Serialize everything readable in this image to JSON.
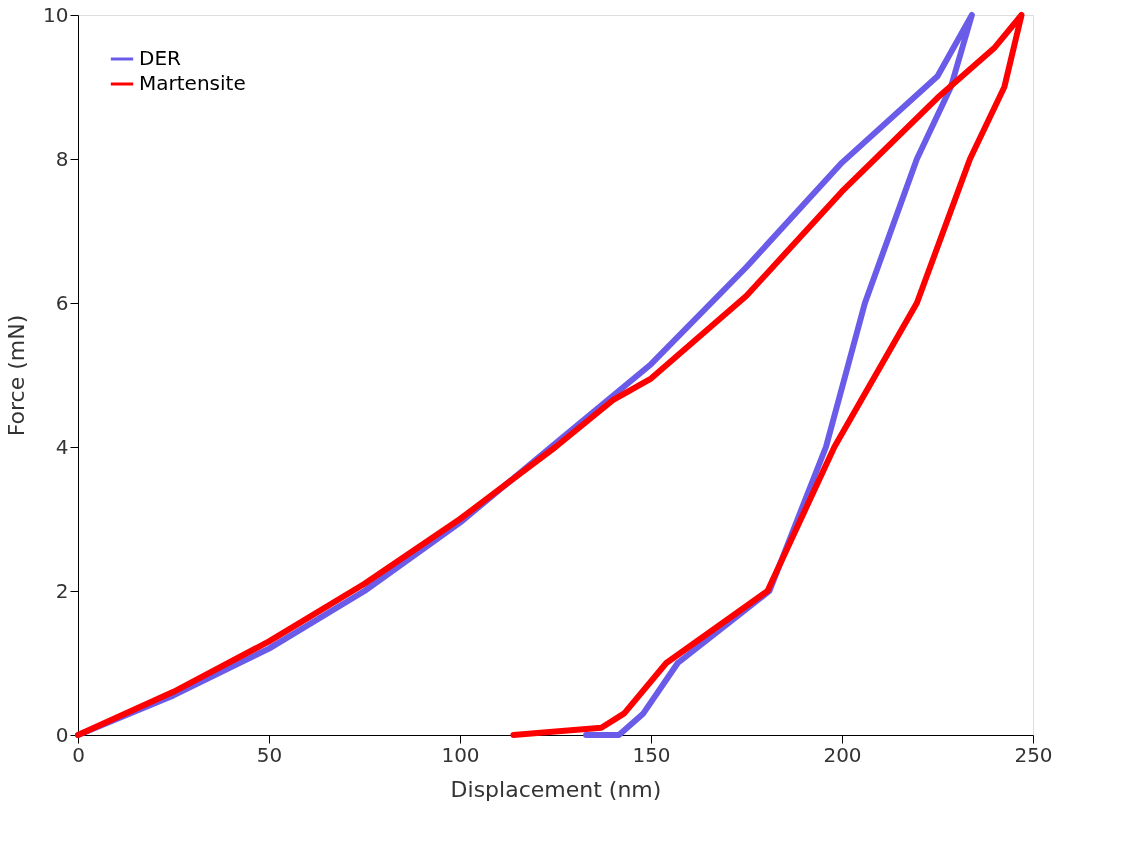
{
  "chart_data": {
    "type": "line",
    "xlabel": "Displacement (nm)",
    "ylabel": "Force (mN)",
    "xlim": [
      0,
      250
    ],
    "xticks": [
      0,
      50,
      100,
      150,
      200,
      250
    ],
    "ylim": [
      0,
      10
    ],
    "yticks": [
      0,
      2,
      4,
      6,
      8,
      10
    ],
    "grid": false,
    "legend": "top left",
    "marker": "none",
    "line_style": "solid",
    "series": [
      {
        "name": "DER",
        "color": "#6a5ce8",
        "x": [
          0,
          25,
          50,
          75,
          100,
          125,
          150,
          175,
          200,
          225,
          234,
          228.5,
          219.6,
          206,
          195.8,
          181,
          157,
          148,
          141.6,
          133
        ],
        "values": [
          0,
          0.55,
          1.2,
          2.0,
          2.95,
          4.05,
          5.15,
          6.5,
          7.95,
          9.15,
          10,
          9,
          8,
          6,
          4,
          2,
          1,
          0.3,
          0,
          0
        ]
      },
      {
        "name": "Martensite",
        "color": "#ff0000",
        "x": [
          0,
          25,
          50,
          75,
          100,
          125,
          140,
          150,
          175,
          200,
          225,
          240,
          247,
          242.5,
          233.5,
          219.6,
          198,
          180.5,
          154,
          143,
          137,
          125,
          114
        ],
        "values": [
          0,
          0.6,
          1.3,
          2.1,
          3.0,
          4.0,
          4.65,
          4.95,
          6.1,
          7.55,
          8.85,
          9.55,
          10,
          9,
          8,
          6,
          4,
          2,
          1,
          0.3,
          0.1,
          0.05,
          0
        ]
      }
    ]
  }
}
